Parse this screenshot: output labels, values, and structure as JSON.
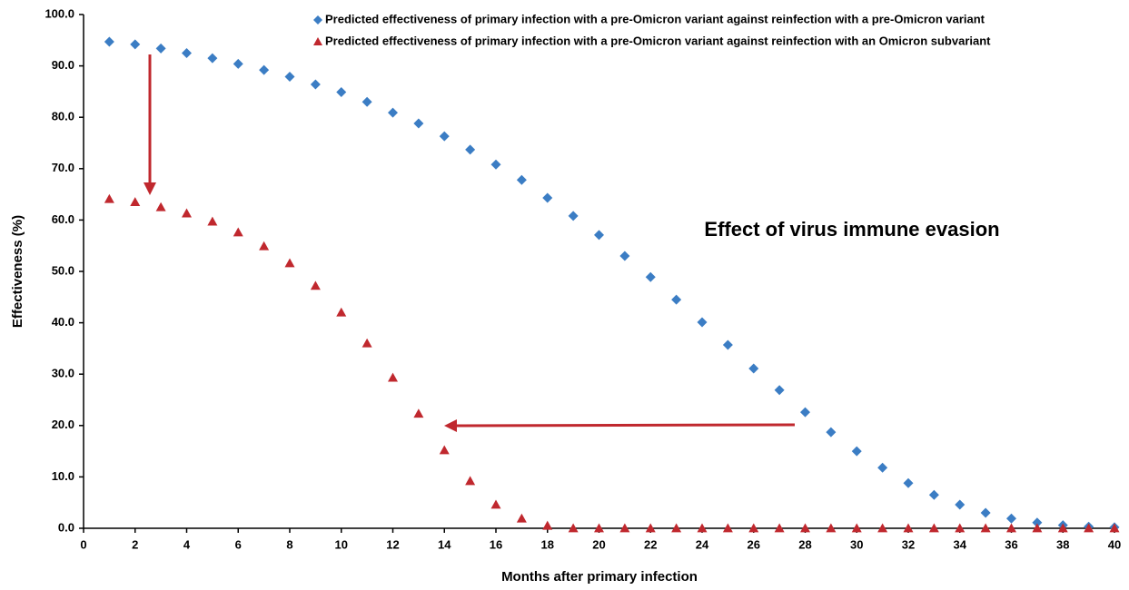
{
  "chart_data": {
    "type": "scatter",
    "annotation": "Effect of virus immune evasion",
    "xlabel": "Months after primary infection",
    "ylabel": "Effectiveness (%)",
    "x": [
      1,
      2,
      3,
      4,
      5,
      6,
      7,
      8,
      9,
      10,
      11,
      12,
      13,
      14,
      15,
      16,
      17,
      18,
      19,
      20,
      21,
      22,
      23,
      24,
      25,
      26,
      27,
      28,
      29,
      30,
      31,
      32,
      33,
      34,
      35,
      36,
      37,
      38,
      39,
      40
    ],
    "series": [
      {
        "name": "Predicted effectiveness of primary infection with a pre-Omicron variant against reinfection with a pre-Omicron variant",
        "color": "#3b7dc4",
        "marker": "diamond",
        "values": [
          94.7,
          94.2,
          93.4,
          92.5,
          91.5,
          90.4,
          89.2,
          87.9,
          86.4,
          84.9,
          83.0,
          80.9,
          78.8,
          76.3,
          73.7,
          70.8,
          67.8,
          64.3,
          60.8,
          57.1,
          53.0,
          48.9,
          44.5,
          40.1,
          35.7,
          31.1,
          26.9,
          22.6,
          18.7,
          15.0,
          11.8,
          8.8,
          6.5,
          4.6,
          3.0,
          1.9,
          1.1,
          0.6,
          0.3,
          0.2
        ]
      },
      {
        "name": "Predicted effectiveness of primary infection with a pre-Omicron variant against reinfection with an Omicron subvariant",
        "color": "#c0282e",
        "marker": "triangle",
        "values": [
          64.1,
          63.5,
          62.5,
          61.3,
          59.7,
          57.6,
          54.9,
          51.6,
          47.2,
          42.0,
          36.0,
          29.3,
          22.3,
          15.2,
          9.2,
          4.6,
          1.9,
          0.5,
          0,
          0,
          0,
          0,
          0,
          0,
          0,
          0,
          0,
          0,
          0,
          0,
          0,
          0,
          0,
          0,
          0,
          0,
          0,
          0,
          0,
          0
        ]
      }
    ],
    "xlim": [
      0,
      40
    ],
    "xticks": [
      0,
      2,
      4,
      6,
      8,
      10,
      12,
      14,
      16,
      18,
      20,
      22,
      24,
      26,
      28,
      30,
      32,
      34,
      36,
      38,
      40
    ],
    "ylim": [
      0,
      100
    ],
    "yticks": [
      {
        "value": 0,
        "label": "0.0"
      },
      {
        "value": 10,
        "label": "10.0"
      },
      {
        "value": 20,
        "label": "20.0"
      },
      {
        "value": 30,
        "label": "30.0"
      },
      {
        "value": 40,
        "label": "40.0"
      },
      {
        "value": 50,
        "label": "50.0"
      },
      {
        "value": 60,
        "label": "60.0"
      },
      {
        "value": 70,
        "label": "70.0"
      },
      {
        "value": 80,
        "label": "80.0"
      },
      {
        "value": 90,
        "label": "90.0"
      },
      {
        "value": 100,
        "label": "100.0"
      }
    ],
    "grid": false,
    "legend": "top-right"
  }
}
